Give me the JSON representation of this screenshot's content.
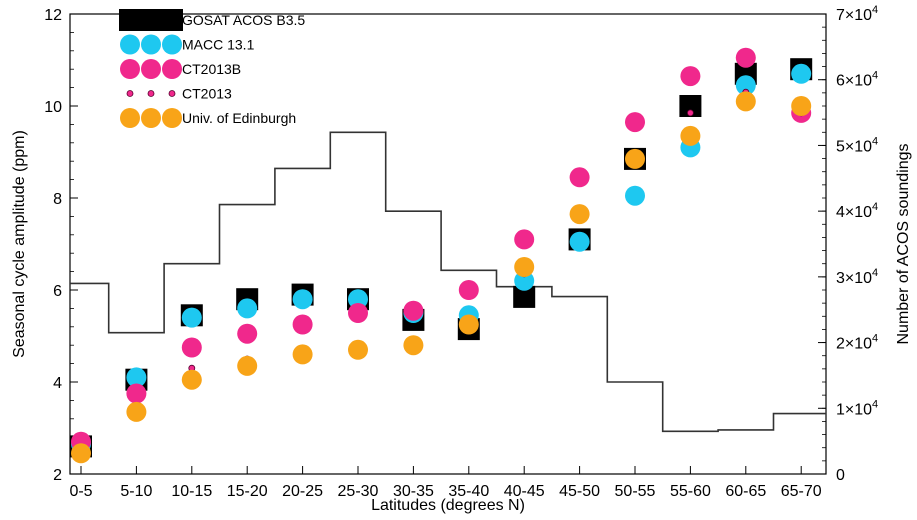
{
  "chart_data": {
    "type": "scatter",
    "xlabel": "Latitudes (degrees N)",
    "ylabel": "Seasonal cycle amplitude (ppm)",
    "y2label": "Number of ACOS soundings",
    "categories": [
      "0-5",
      "5-10",
      "10-15",
      "15-20",
      "20-25",
      "25-30",
      "30-35",
      "35-40",
      "40-45",
      "45-50",
      "50-55",
      "55-60",
      "60-65",
      "65-70"
    ],
    "ylim": [
      2,
      12
    ],
    "yticks": [
      "2",
      "4",
      "6",
      "8",
      "10",
      "12"
    ],
    "y2lim": [
      0,
      70000
    ],
    "y2ticks": [
      {
        "value": 0,
        "mant": "0",
        "exp": ""
      },
      {
        "value": 10000,
        "mant": "1×10",
        "exp": "4"
      },
      {
        "value": 20000,
        "mant": "2×10",
        "exp": "4"
      },
      {
        "value": 30000,
        "mant": "3×10",
        "exp": "4"
      },
      {
        "value": 40000,
        "mant": "4×10",
        "exp": "4"
      },
      {
        "value": 50000,
        "mant": "5×10",
        "exp": "4"
      },
      {
        "value": 60000,
        "mant": "6×10",
        "exp": "4"
      },
      {
        "value": 70000,
        "mant": "7×10",
        "exp": "4"
      }
    ],
    "legend_position": "top-left",
    "series": [
      {
        "name": "GOSAT ACOS B3.5",
        "marker": "square",
        "color": "#000000",
        "values": [
          2.6,
          4.05,
          5.45,
          5.8,
          5.9,
          5.8,
          5.35,
          5.15,
          5.85,
          7.1,
          8.85,
          10.0,
          10.7,
          10.8
        ]
      },
      {
        "name": "MACC 13.1",
        "marker": "circle",
        "color": "#1ec8f0",
        "values": [
          2.65,
          4.1,
          5.4,
          5.6,
          5.8,
          5.8,
          5.5,
          5.45,
          6.2,
          7.05,
          8.05,
          9.1,
          10.45,
          10.7
        ]
      },
      {
        "name": "CT2013B",
        "marker": "circle",
        "color": "#f0288c",
        "values": [
          2.7,
          3.75,
          4.75,
          5.05,
          5.25,
          5.5,
          5.55,
          6.0,
          7.1,
          8.45,
          9.65,
          10.65,
          11.05,
          9.85
        ]
      },
      {
        "name": "CT2013",
        "marker": "dot",
        "color": "#f0288c",
        "values": [
          2.35,
          3.35,
          4.3,
          4.5,
          4.6,
          4.7,
          4.8,
          5.25,
          6.35,
          7.65,
          8.85,
          9.85,
          10.3,
          9.85
        ]
      },
      {
        "name": "Univ. of Edinburgh",
        "marker": "circle",
        "color": "#f8a418",
        "values": [
          2.45,
          3.35,
          4.05,
          4.35,
          4.6,
          4.7,
          4.8,
          5.25,
          6.5,
          7.65,
          8.85,
          9.35,
          10.1,
          10.0
        ]
      }
    ],
    "soundings": {
      "name": "Number of ACOS soundings",
      "color": "#333333",
      "values": [
        29000,
        21500,
        32000,
        41000,
        46500,
        52000,
        40000,
        31000,
        28500,
        27000,
        14000,
        6500,
        6700,
        9200
      ]
    }
  }
}
